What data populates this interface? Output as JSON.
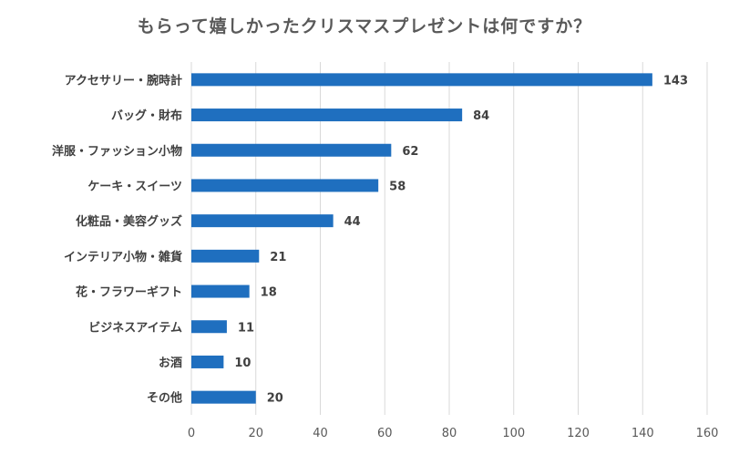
{
  "chart_data": {
    "type": "bar",
    "orientation": "horizontal",
    "title": "もらって嬉しかったクリスマスプレゼントは何ですか？",
    "categories": [
      "アクセサリー・腕時計",
      "バッグ・財布",
      "洋服・ファッション小物",
      "ケーキ・スイーツ",
      "化粧品・美容グッズ",
      "インテリア小物・雑貨",
      "花・フラワーギフト",
      "ビジネスアイテム",
      "お酒",
      "その他"
    ],
    "values": [
      143,
      84,
      62,
      58,
      44,
      21,
      18,
      11,
      10,
      20
    ],
    "xlim": [
      0,
      160
    ],
    "xticks": [
      0,
      20,
      40,
      60,
      80,
      100,
      120,
      140,
      160
    ],
    "grid": true,
    "legend": "none",
    "bar_color": "#1f6fbf",
    "grid_color": "#d9d9d9"
  }
}
